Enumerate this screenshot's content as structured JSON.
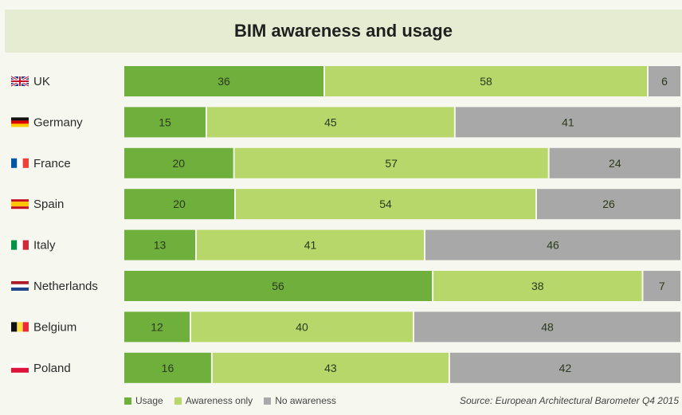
{
  "colors": {
    "usage": "#6faf3b",
    "awareness": "#b7d76a",
    "none": "#a8a8a8"
  },
  "chart_data": {
    "type": "bar",
    "orientation": "horizontal",
    "stacked": true,
    "title": "BIM awareness and usage",
    "categories": [
      "UK",
      "Germany",
      "France",
      "Spain",
      "Italy",
      "Netherlands",
      "Belgium",
      "Poland"
    ],
    "flag_icons": [
      "uk-flag-icon",
      "germany-flag-icon",
      "france-flag-icon",
      "spain-flag-icon",
      "italy-flag-icon",
      "netherlands-flag-icon",
      "belgium-flag-icon",
      "poland-flag-icon"
    ],
    "series": [
      {
        "name": "Usage",
        "values": [
          36,
          15,
          20,
          20,
          13,
          56,
          12,
          16
        ]
      },
      {
        "name": "Awareness only",
        "values": [
          58,
          45,
          57,
          54,
          41,
          38,
          40,
          43
        ]
      },
      {
        "name": "No awareness",
        "values": [
          6,
          41,
          24,
          26,
          46,
          7,
          48,
          42
        ]
      }
    ],
    "legend_position": "bottom-left",
    "source": "Source: European Architectural Barometer Q4 2015"
  }
}
